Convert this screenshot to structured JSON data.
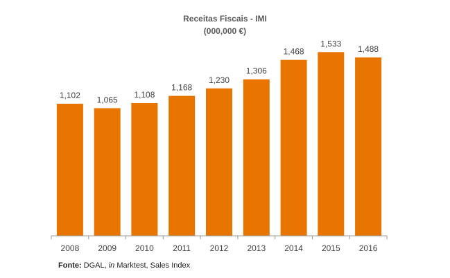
{
  "chart_data": {
    "type": "bar",
    "title": "Receitas Fiscais  - IMI",
    "subtitle": "(000,000 €)",
    "categories": [
      "2008",
      "2009",
      "2010",
      "2011",
      "2012",
      "2013",
      "2014",
      "2015",
      "2016"
    ],
    "values": [
      1102,
      1065,
      1108,
      1168,
      1230,
      1306,
      1468,
      1533,
      1488
    ],
    "value_labels": [
      "1,102",
      "1,065",
      "1,108",
      "1,168",
      "1,230",
      "1,306",
      "1,468",
      "1,533",
      "1,488"
    ],
    "ylim": [
      0,
      1600
    ],
    "grid": false,
    "legend": "none",
    "bar_color": "#e87500",
    "axis_color": "#9a9a9a",
    "label_color": "#404040"
  },
  "source": {
    "label": "Fonte:",
    "text_plain": " DGAL, ",
    "text_italic": "in",
    "text_rest": " Marktest, Sales Index"
  }
}
